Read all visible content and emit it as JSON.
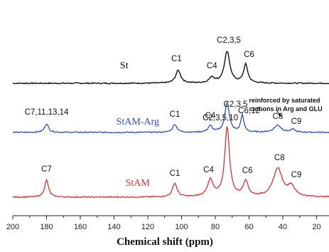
{
  "chart_data": {
    "type": "line",
    "xlabel": "Chemical shift (ppm)",
    "ylabel": "",
    "xlim": [
      200,
      0
    ],
    "x_ticks": [
      "200",
      "180",
      "160",
      "140",
      "120",
      "100",
      "80",
      "60",
      "40",
      "20"
    ],
    "x_tick_values": [
      200,
      180,
      160,
      140,
      120,
      100,
      80,
      60,
      40,
      20
    ],
    "series": [
      {
        "name": "St",
        "color": "#000000",
        "label_at": [
          134,
          0.52
        ],
        "peaks": [
          {
            "label": "C1",
            "x": 102,
            "h": 0.45,
            "w": 1.8,
            "lx": 103,
            "ly": 0.78
          },
          {
            "label": "C4",
            "x": 82,
            "h": 0.2,
            "w": 1.8,
            "lx": 82,
            "ly": 0.52
          },
          {
            "label": "C2,3,5",
            "x": 73,
            "h": 1.1,
            "w": 2.0,
            "lx": 72,
            "ly": 1.42
          },
          {
            "label": "C6",
            "x": 62,
            "h": 0.65,
            "w": 1.5,
            "lx": 60,
            "ly": 0.93
          }
        ]
      },
      {
        "name": "StAM-Arg",
        "color": "#2a4fbf",
        "label_at": [
          126,
          0.28
        ],
        "peaks": [
          {
            "label": "C7,11,13,14",
            "x": 180,
            "h": 0.3,
            "w": 1.4,
            "lx": 180,
            "ly": 0.62
          },
          {
            "label": "C1",
            "x": 104,
            "h": 0.28,
            "w": 1.5,
            "lx": 104,
            "ly": 0.55
          },
          {
            "label": "C4",
            "x": 83,
            "h": 0.22,
            "w": 1.5,
            "lx": 83,
            "ly": 0.5
          },
          {
            "label": "C2,3,5",
            "x": 73,
            "h": 1.05,
            "w": 1.6,
            "lx": 68,
            "ly": 0.9
          },
          {
            "label": "C6,12",
            "x": 64,
            "h": 0.6,
            "w": 1.1,
            "lx": 60,
            "ly": 0.68
          },
          {
            "label": "C8",
            "x": 43,
            "h": 0.25,
            "w": 2.5,
            "lx": 43,
            "ly": 0.48
          },
          {
            "label": "C9",
            "x": 34,
            "h": 0.1,
            "w": 1.5,
            "lx": 32,
            "ly": 0.3
          }
        ],
        "annotation": {
          "lines": [
            "reinforced by saturated",
            "carbons in Arg and GLU"
          ],
          "text_at": [
            60,
            1.05
          ],
          "arrow_from": [
            44,
            0.8
          ],
          "arrow_to": [
            41,
            0.55
          ]
        }
      },
      {
        "name": "StAM",
        "color": "#e03030",
        "label_at": [
          126,
          0.4
        ],
        "peaks": [
          {
            "label": "C7",
            "x": 180,
            "h": 0.6,
            "w": 1.4,
            "lx": 180,
            "ly": 0.9
          },
          {
            "label": "C1",
            "x": 104,
            "h": 0.48,
            "w": 1.6,
            "lx": 104,
            "ly": 0.75
          },
          {
            "label": "C4",
            "x": 83,
            "h": 0.58,
            "w": 2.0,
            "lx": 84,
            "ly": 0.88
          },
          {
            "label": "C2,3,5,10",
            "x": 73,
            "h": 2.45,
            "w": 1.7,
            "lx": 77,
            "ly": 2.7
          },
          {
            "label": "C6",
            "x": 62,
            "h": 0.55,
            "w": 1.7,
            "lx": 61,
            "ly": 0.85
          },
          {
            "label": "C8",
            "x": 43,
            "h": 1.0,
            "w": 3.2,
            "lx": 42,
            "ly": 1.3
          },
          {
            "label": "C9",
            "x": 35,
            "h": 0.35,
            "w": 2.5,
            "lx": 32,
            "ly": 0.7
          }
        ]
      }
    ]
  }
}
